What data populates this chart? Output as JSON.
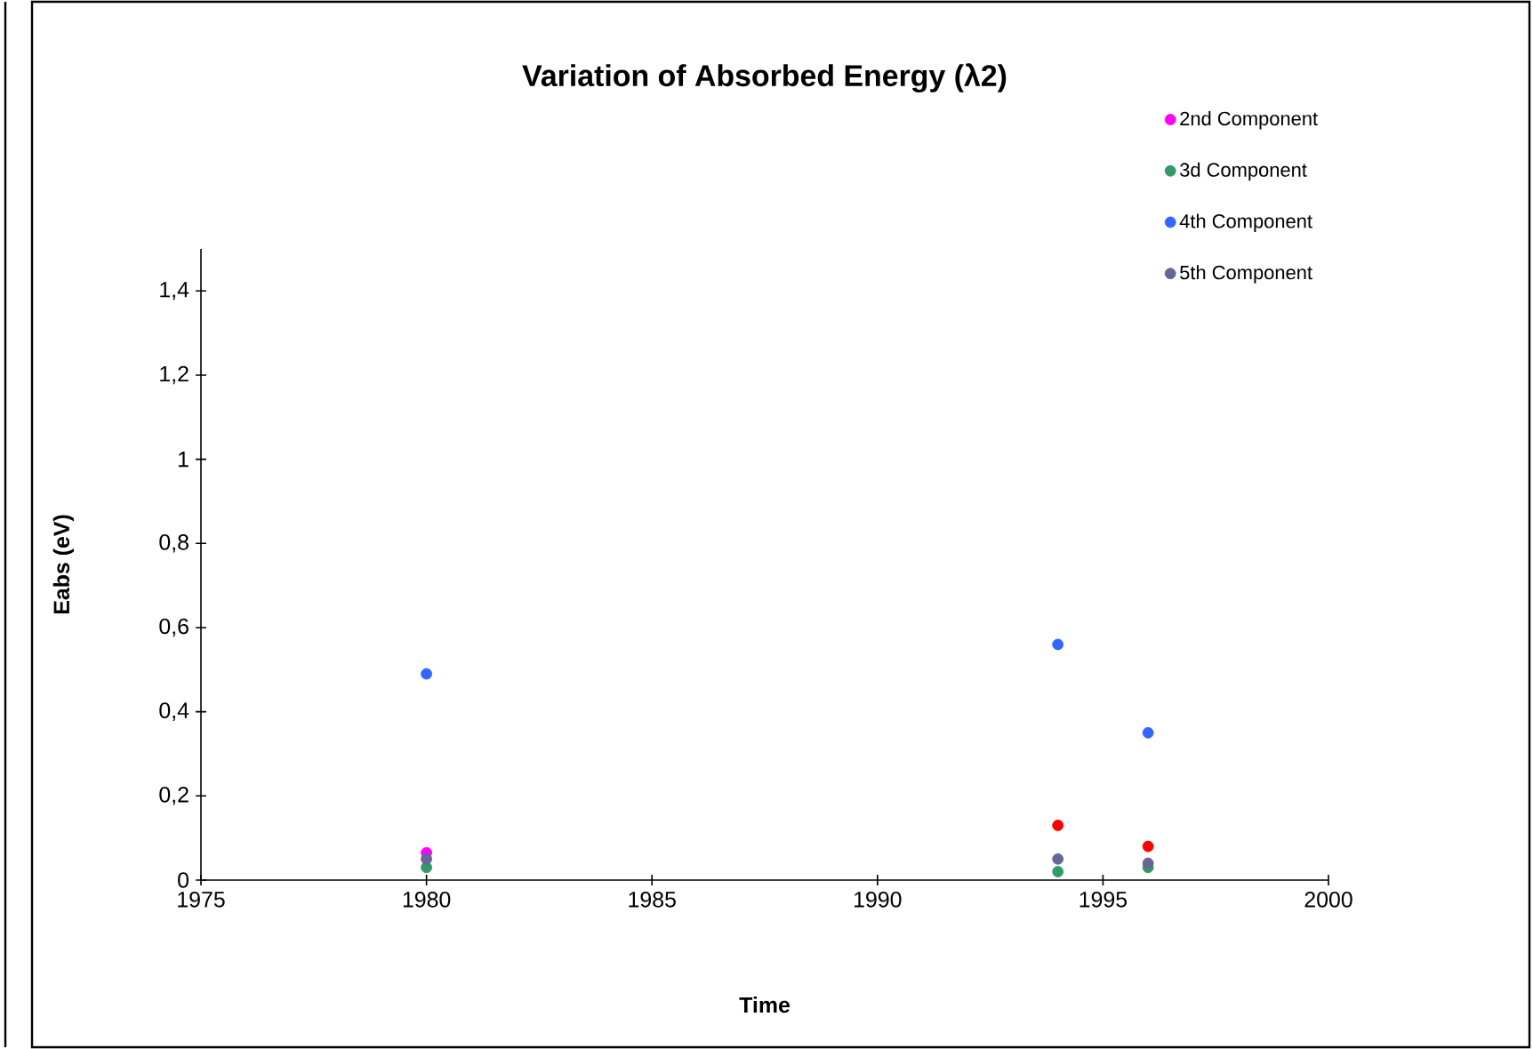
{
  "chart_data": {
    "type": "scatter",
    "title": "Variation of Absorbed Energy (λ2)",
    "xlabel": "Time",
    "ylabel": "Eabs  (eV)",
    "x": [
      1980,
      1994,
      1996
    ],
    "series": [
      {
        "color": "#ff0000",
        "values": [
          null,
          0.13,
          0.08
        ]
      },
      {
        "name": "2nd Component",
        "color": "#ff00ff",
        "values": [
          0.065,
          null,
          null
        ]
      },
      {
        "name": "3d Component",
        "color": "#339966",
        "values": [
          0.03,
          0.02,
          0.03
        ]
      },
      {
        "name": "4th Component",
        "color": "#3366ff",
        "values": [
          0.49,
          0.56,
          0.35
        ]
      },
      {
        "name": "5th Component",
        "color": "#666699",
        "values": [
          0.05,
          0.05,
          0.04
        ]
      }
    ],
    "xlim": [
      1975,
      2000
    ],
    "xticks": [
      1975,
      1980,
      1985,
      1990,
      1995,
      2000
    ],
    "ylim": [
      0,
      1.5
    ],
    "yticks": [
      0,
      {
        "value": 0.2,
        "label": "0,2"
      },
      {
        "value": 0.4,
        "label": "0,4"
      },
      {
        "value": 0.6,
        "label": "0,6"
      },
      {
        "value": 0.8,
        "label": "0,8"
      },
      1,
      {
        "value": 1.2,
        "label": "1,2"
      },
      {
        "value": 1.4,
        "label": "1,4"
      }
    ],
    "grid": false,
    "legend": "top right",
    "marker": "circle"
  }
}
